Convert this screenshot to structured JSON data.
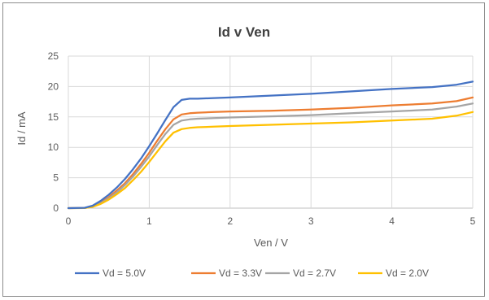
{
  "chart_data": {
    "type": "line",
    "title": "Id v Ven",
    "xlabel": "Ven / V",
    "ylabel": "Id / mA",
    "xlim": [
      0,
      5
    ],
    "ylim": [
      0,
      25
    ],
    "x_ticks": [
      "0",
      "1",
      "2",
      "3",
      "4",
      "5"
    ],
    "y_ticks": [
      "0",
      "5",
      "10",
      "15",
      "20",
      "25"
    ],
    "grid": true,
    "legend_position": "bottom",
    "x": [
      0,
      0.2,
      0.3,
      0.4,
      0.5,
      0.6,
      0.7,
      0.8,
      0.9,
      1.0,
      1.1,
      1.2,
      1.3,
      1.4,
      1.5,
      1.6,
      1.8,
      2.0,
      2.5,
      3.0,
      3.5,
      4.0,
      4.5,
      4.8,
      5.0
    ],
    "series": [
      {
        "name": "Vd = 5.0V",
        "color": "#4472c4",
        "values": [
          0,
          0.05,
          0.4,
          1.2,
          2.2,
          3.4,
          4.8,
          6.4,
          8.2,
          10.2,
          12.3,
          14.5,
          16.6,
          17.8,
          18.0,
          18.0,
          18.1,
          18.2,
          18.5,
          18.8,
          19.2,
          19.6,
          19.9,
          20.3,
          20.8
        ]
      },
      {
        "name": "Vd = 3.3V",
        "color": "#ed7d31",
        "values": [
          0,
          0.03,
          0.3,
          0.9,
          1.8,
          2.9,
          4.1,
          5.6,
          7.3,
          9.1,
          11.1,
          13.0,
          14.6,
          15.4,
          15.6,
          15.7,
          15.8,
          15.9,
          16.0,
          16.2,
          16.5,
          16.9,
          17.2,
          17.6,
          18.2
        ]
      },
      {
        "name": "Vd = 2.7V",
        "color": "#a5a5a5",
        "values": [
          0,
          0.02,
          0.25,
          0.8,
          1.6,
          2.6,
          3.8,
          5.2,
          6.8,
          8.5,
          10.4,
          12.2,
          13.7,
          14.4,
          14.6,
          14.7,
          14.8,
          14.9,
          15.1,
          15.3,
          15.6,
          15.9,
          16.2,
          16.7,
          17.2
        ]
      },
      {
        "name": "Vd = 2.0V",
        "color": "#ffc000",
        "values": [
          0,
          0.01,
          0.2,
          0.7,
          1.4,
          2.3,
          3.3,
          4.6,
          6.0,
          7.6,
          9.3,
          11.0,
          12.4,
          13.0,
          13.2,
          13.3,
          13.4,
          13.5,
          13.7,
          13.9,
          14.1,
          14.4,
          14.7,
          15.2,
          15.8
        ]
      }
    ]
  }
}
